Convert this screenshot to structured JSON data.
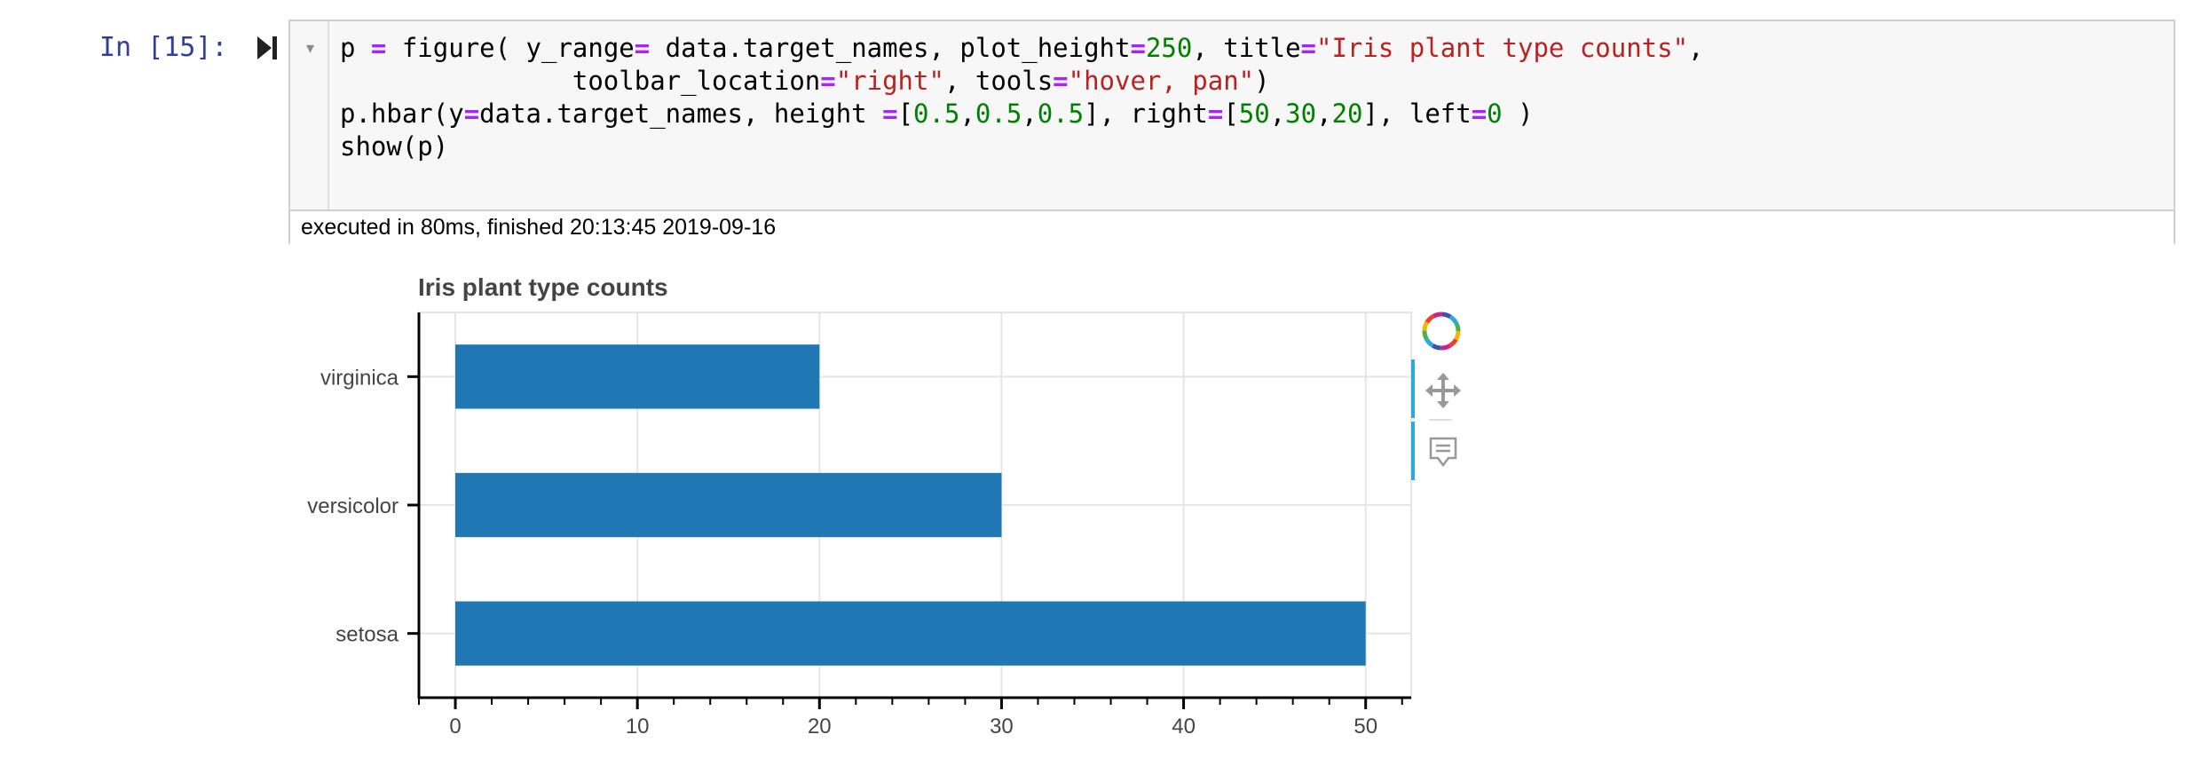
{
  "prompt": "In [15]:",
  "code_lines": [
    [
      {
        "t": "p "
      },
      {
        "t": "=",
        "c": "kw"
      },
      {
        "t": " figure( y_range"
      },
      {
        "t": "=",
        "c": "kw"
      },
      {
        "t": " data.target_names, plot_height"
      },
      {
        "t": "=",
        "c": "kw"
      },
      {
        "t": "250",
        "c": "n"
      },
      {
        "t": ", title"
      },
      {
        "t": "=",
        "c": "kw"
      },
      {
        "t": "\"Iris plant type counts\"",
        "c": "s"
      },
      {
        "t": ","
      }
    ],
    [
      {
        "t": "               toolbar_location"
      },
      {
        "t": "=",
        "c": "kw"
      },
      {
        "t": "\"right\"",
        "c": "s"
      },
      {
        "t": ", tools"
      },
      {
        "t": "=",
        "c": "kw"
      },
      {
        "t": "\"hover, pan\"",
        "c": "s"
      },
      {
        "t": ")"
      }
    ],
    [
      {
        "t": "p.hbar(y"
      },
      {
        "t": "=",
        "c": "kw"
      },
      {
        "t": "data.target_names, height "
      },
      {
        "t": "=",
        "c": "kw"
      },
      {
        "t": "["
      },
      {
        "t": "0.5",
        "c": "n"
      },
      {
        "t": ","
      },
      {
        "t": "0.5",
        "c": "n"
      },
      {
        "t": ","
      },
      {
        "t": "0.5",
        "c": "n"
      },
      {
        "t": "], right"
      },
      {
        "t": "=",
        "c": "kw"
      },
      {
        "t": "["
      },
      {
        "t": "50",
        "c": "n"
      },
      {
        "t": ","
      },
      {
        "t": "30",
        "c": "n"
      },
      {
        "t": ","
      },
      {
        "t": "20",
        "c": "n"
      },
      {
        "t": "], left"
      },
      {
        "t": "=",
        "c": "kw"
      },
      {
        "t": "0",
        "c": "n"
      },
      {
        "t": " )"
      }
    ],
    [
      {
        "t": "show(p)"
      }
    ]
  ],
  "exec_status": "executed in 80ms, finished 20:13:45 2019-09-16",
  "toolbar": {
    "tools": [
      "bokeh-logo-icon",
      "pan-icon",
      "hover-icon"
    ]
  },
  "colors": {
    "bar": "#1f77b4",
    "prompt": "#303f9f",
    "toolbar_active": "#26aae1"
  },
  "chart_data": {
    "type": "bar",
    "orientation": "horizontal",
    "title": "Iris plant type counts",
    "categories": [
      "setosa",
      "versicolor",
      "virginica"
    ],
    "values": [
      50,
      30,
      20
    ],
    "bar_height": 0.5,
    "xlim": [
      -2,
      52.5
    ],
    "xticks": [
      0,
      10,
      20,
      30,
      40,
      50
    ],
    "minor_ticks_per_major": 5,
    "xlabel": "",
    "ylabel": "",
    "grid": true,
    "legend": "none"
  }
}
